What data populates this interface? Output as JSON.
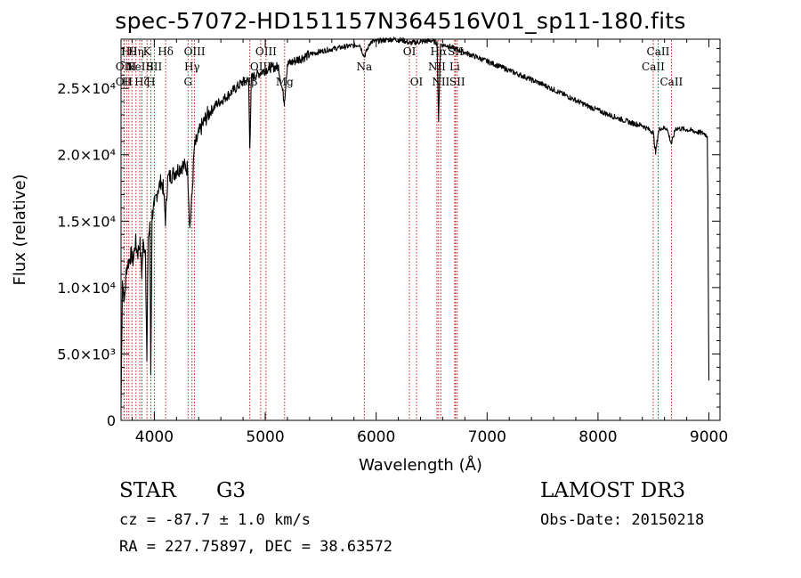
{
  "chart_data": {
    "type": "line",
    "title": "spec-57072-HD151157N364516V01_sp11-180.fits",
    "xlabel": "Wavelength (Å)",
    "ylabel": "Flux (relative)",
    "xlim": [
      3700,
      9100
    ],
    "ylim": [
      0,
      28700
    ],
    "x_ticks": [
      4000,
      5000,
      6000,
      7000,
      8000,
      9000
    ],
    "x_tick_labels": [
      "4000",
      "5000",
      "6000",
      "7000",
      "8000",
      "9000"
    ],
    "y_ticks": [
      0,
      5000,
      10000,
      15000,
      20000,
      25000
    ],
    "y_tick_labels": [
      "0",
      "5.0×10³",
      "1.0×10⁴",
      "1.5×10⁴",
      "2.0×10⁴",
      "2.5×10⁴"
    ],
    "series": [
      {
        "name": "spectrum",
        "x": [
          3700,
          3712,
          3730,
          3750,
          3770,
          3790,
          3810,
          3830,
          3850,
          3870,
          3888,
          3900,
          3920,
          3933,
          3945,
          3960,
          3968,
          3980,
          4000,
          4030,
          4060,
          4080,
          4101,
          4120,
          4160,
          4200,
          4250,
          4300,
          4320,
          4340,
          4360,
          4380,
          4420,
          4480,
          4560,
          4640,
          4720,
          4800,
          4850,
          4861,
          4875,
          4920,
          4980,
          5060,
          5120,
          5172,
          5200,
          5300,
          5420,
          5560,
          5700,
          5850,
          5893,
          5950,
          6050,
          6150,
          6250,
          6300,
          6400,
          6500,
          6550,
          6563,
          6580,
          6650,
          6700,
          6800,
          6950,
          7100,
          7300,
          7500,
          7700,
          7900,
          8100,
          8300,
          8400,
          8498,
          8520,
          8542,
          8560,
          8620,
          8662,
          8700,
          8800,
          8900,
          8960,
          8985,
          8990,
          9000
        ],
        "values": [
          1000,
          10500,
          9000,
          11500,
          12000,
          12500,
          12000,
          13500,
          12500,
          13500,
          11000,
          13300,
          12800,
          4500,
          13800,
          14500,
          3500,
          15500,
          16200,
          17300,
          18000,
          17500,
          15000,
          18200,
          18500,
          18800,
          19200,
          19000,
          14500,
          17000,
          20500,
          21000,
          22000,
          23000,
          23800,
          24300,
          24900,
          25500,
          25600,
          20500,
          25800,
          26000,
          26300,
          26600,
          26600,
          24000,
          26800,
          27200,
          27600,
          27900,
          28100,
          28300,
          27400,
          28500,
          28600,
          28700,
          28600,
          28400,
          28500,
          28600,
          28400,
          22500,
          28300,
          28200,
          28000,
          27700,
          27200,
          26700,
          26000,
          25300,
          24500,
          23700,
          23000,
          22400,
          22200,
          21700,
          20100,
          21600,
          22000,
          22000,
          20800,
          22000,
          21900,
          21700,
          21600,
          21400,
          17500,
          3000
        ]
      }
    ],
    "lines": [
      {
        "x": 3727,
        "row": 1,
        "label": "OII"
      },
      {
        "x": 3727,
        "row": 2,
        "label": "OII"
      },
      {
        "x": 3750,
        "row": 2,
        "label": "H"
      },
      {
        "x": 3771,
        "row": 0,
        "label": "Hθ"
      },
      {
        "x": 3798,
        "row": 1,
        "label": "H"
      },
      {
        "x": 3835,
        "row": 0,
        "label": "Hη"
      },
      {
        "x": 3869,
        "row": 1,
        "label": "NeIII"
      },
      {
        "x": 3889,
        "row": 2,
        "label": "Hζ"
      },
      {
        "x": 3934,
        "row": 0,
        "label": "K"
      },
      {
        "x": 3968,
        "row": 2,
        "label": "H"
      },
      {
        "x": 4000,
        "row": 1,
        "label": "SII"
      },
      {
        "x": 4102,
        "row": 0,
        "label": "Hδ"
      },
      {
        "x": 4304,
        "row": 2,
        "label": "G"
      },
      {
        "x": 4340,
        "row": 1,
        "label": "Hγ"
      },
      {
        "x": 4363,
        "row": 0,
        "label": "OIII"
      },
      {
        "x": 4861,
        "row": 2,
        "label": "Hβ"
      },
      {
        "x": 4959,
        "row": 1,
        "label": "OIII"
      },
      {
        "x": 5007,
        "row": 0,
        "label": "OIII"
      },
      {
        "x": 5175,
        "row": 2,
        "label": "Mg"
      },
      {
        "x": 5893,
        "row": 1,
        "label": "Na"
      },
      {
        "x": 6300,
        "row": 0,
        "label": "OI"
      },
      {
        "x": 6364,
        "row": 2,
        "label": "OI"
      },
      {
        "x": 6548,
        "row": 1,
        "label": "NII"
      },
      {
        "x": 6563,
        "row": 0,
        "label": "Hα"
      },
      {
        "x": 6583,
        "row": 2,
        "label": "NII"
      },
      {
        "x": 6708,
        "row": 1,
        "label": "Li"
      },
      {
        "x": 6716,
        "row": 0,
        "label": "SII"
      },
      {
        "x": 6731,
        "row": 2,
        "label": "SII"
      },
      {
        "x": 8498,
        "row": 1,
        "label": "CaII"
      },
      {
        "x": 8542,
        "row": 0,
        "label": "CaII"
      },
      {
        "x": 8662,
        "row": 2,
        "label": "CaII"
      }
    ]
  },
  "info": {
    "obj_class": "STAR",
    "subclass": "G3",
    "survey": "LAMOST DR3",
    "cz": "cz = -87.7 ± 1.0 km/s",
    "obs_date": "Obs-Date: 20150218",
    "coords": "RA = 227.75897, DEC =  38.63572"
  }
}
